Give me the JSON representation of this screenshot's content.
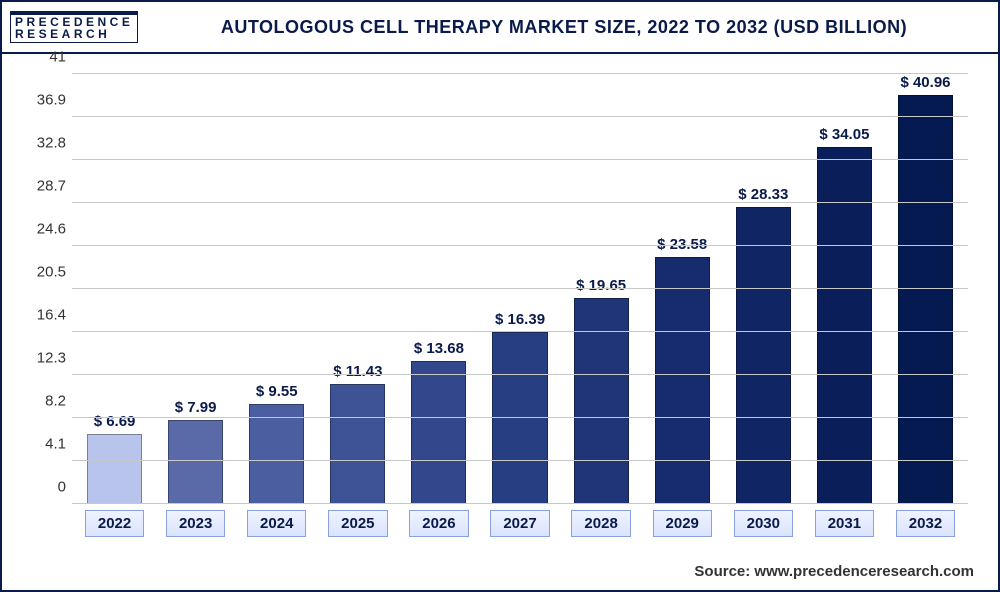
{
  "header": {
    "logo_line1": "PRECEDENCE",
    "logo_line2": "RESEARCH",
    "title": "AUTOLOGOUS CELL THERAPY MARKET SIZE, 2022 TO 2032 (USD BILLION)"
  },
  "chart": {
    "type": "bar",
    "background_color": "#ffffff",
    "grid_color": "#c8c8c8",
    "frame_border_color": "#0a1a4a",
    "ylim": [
      0,
      41
    ],
    "ytick_step": 4.1,
    "yticks": [
      0,
      4.1,
      8.2,
      12.3,
      16.4,
      20.5,
      24.6,
      28.7,
      32.8,
      36.9,
      41
    ],
    "ytick_label_color": "#333333",
    "ytick_fontsize": 15,
    "categories": [
      "2022",
      "2023",
      "2024",
      "2025",
      "2026",
      "2027",
      "2028",
      "2029",
      "2030",
      "2031",
      "2032"
    ],
    "values": [
      6.69,
      7.99,
      9.55,
      11.43,
      13.68,
      16.39,
      19.65,
      23.58,
      28.33,
      34.05,
      40.96
    ],
    "value_labels": [
      "$ 6.69",
      "$ 7.99",
      "$ 9.55",
      "$ 11.43",
      "$ 13.68",
      "$ 16.39",
      "$ 19.65",
      "$ 23.58",
      "$ 28.33",
      "$ 34.05",
      "$ 40.96"
    ],
    "value_label_fontsize": 15,
    "value_label_color": "#0a1a4a",
    "bar_colors": [
      "#b8c4eb",
      "#5a6aa8",
      "#4a5ea0",
      "#3e5396",
      "#33488c",
      "#283e82",
      "#1f3578",
      "#162c6e",
      "#102564",
      "#0a1f5a",
      "#061a52"
    ],
    "bar_width": 0.68,
    "x_tick_box_border": "#8aa0e0",
    "x_tick_fontsize": 15,
    "x_tick_color": "#0a1a4a",
    "title_fontsize": 18,
    "title_color": "#0a1a4a",
    "logo_fontsize": 12,
    "logo_color": "#0a1a4a",
    "source_fontsize": 15,
    "source_color": "#333333"
  },
  "source": "Source: www.precedenceresearch.com"
}
